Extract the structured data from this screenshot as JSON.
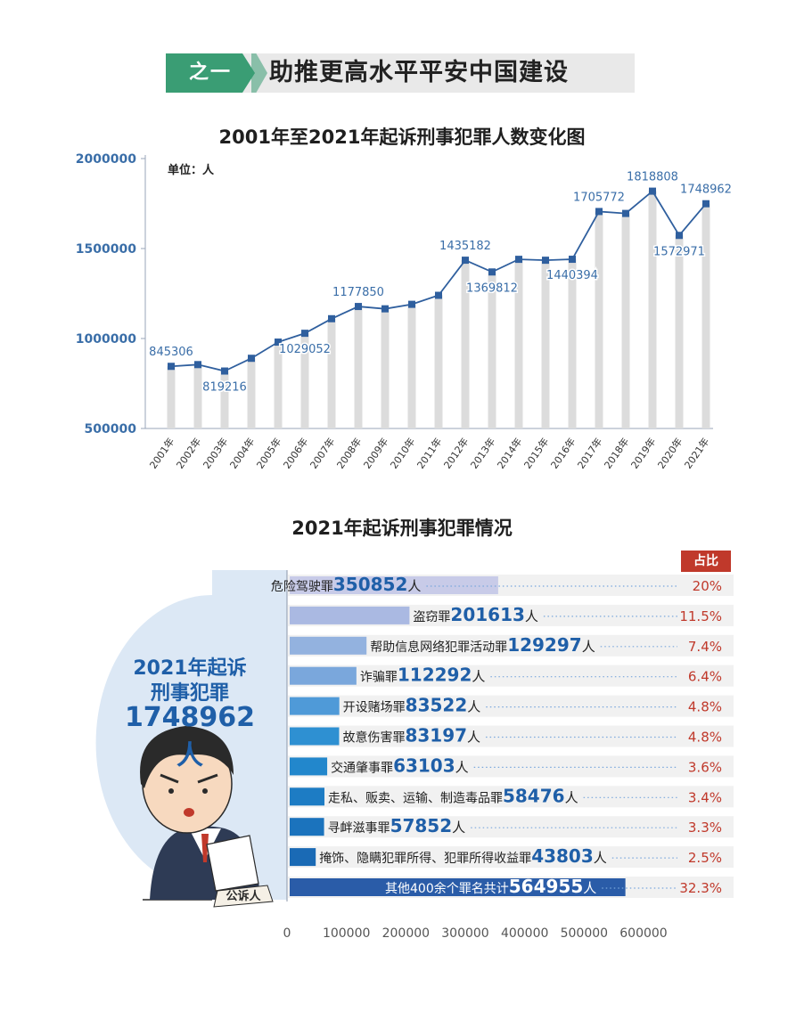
{
  "banner": {
    "tag": "之一",
    "title": "助推更高水平平安中国建设"
  },
  "line_chart_unit": "单位：人",
  "bar_panel": {
    "line1": "2021年起诉",
    "line2": "刑事犯罪",
    "total": "1748962人",
    "badge": "公诉人"
  },
  "colors": {
    "accent_green": "#3a9d74",
    "line_blue": "#2f5f9e",
    "label_blue": "#3a6ea8",
    "pct_red": "#c0392b"
  },
  "chart_data": [
    {
      "type": "line",
      "title": "2001年至2021年起诉刑事犯罪人数变化图",
      "xlabel": "",
      "ylabel": "",
      "ylim": [
        500000,
        2000000
      ],
      "yticks": [
        500000,
        1000000,
        1500000,
        2000000
      ],
      "grid": false,
      "x": [
        "2001年",
        "2002年",
        "2003年",
        "2004年",
        "2005年",
        "2006年",
        "2007年",
        "2008年",
        "2009年",
        "2010年",
        "2011年",
        "2012年",
        "2013年",
        "2014年",
        "2015年",
        "2016年",
        "2017年",
        "2018年",
        "2019年",
        "2020年",
        "2021年"
      ],
      "series": [
        {
          "values": [
            845306,
            855000,
            819216,
            890000,
            980000,
            1029052,
            1110000,
            1177850,
            1165000,
            1190000,
            1240000,
            1435182,
            1369812,
            1440000,
            1435000,
            1440394,
            1705772,
            1695000,
            1818808,
            1572971,
            1748962
          ]
        }
      ],
      "data_labels": [
        {
          "index": 0,
          "text": "845306"
        },
        {
          "index": 2,
          "text": "819216"
        },
        {
          "index": 5,
          "text": "1029052"
        },
        {
          "index": 7,
          "text": "1177850"
        },
        {
          "index": 11,
          "text": "1435182"
        },
        {
          "index": 12,
          "text": "1369812"
        },
        {
          "index": 15,
          "text": "1440394"
        },
        {
          "index": 16,
          "text": "1705772"
        },
        {
          "index": 18,
          "text": "1818808"
        },
        {
          "index": 19,
          "text": "1572971"
        },
        {
          "index": 20,
          "text": "1748962"
        }
      ]
    },
    {
      "type": "bar",
      "orientation": "horizontal",
      "title": "2021年起诉刑事犯罪情况",
      "xlim": [
        0,
        600000
      ],
      "xticks": [
        0,
        100000,
        200000,
        300000,
        400000,
        500000,
        600000
      ],
      "percent_header": "占比",
      "categories": [
        "危险驾驶罪",
        "盗窃罪",
        "帮助信息网络犯罪活动罪",
        "诈骗罪",
        "开设赌场罪",
        "故意伤害罪",
        "交通肇事罪",
        "走私、贩卖、运输、制造毒品罪",
        "寻衅滋事罪",
        "掩饰、隐瞒犯罪所得、犯罪所得收益罪",
        "其他400余个罪名共计"
      ],
      "values": [
        350852,
        201613,
        129297,
        112292,
        83522,
        83197,
        63103,
        58476,
        57852,
        43803,
        564955
      ],
      "value_labels": [
        "350852",
        "201613",
        "129297",
        "112292",
        "83522",
        "83197",
        "63103",
        "58476",
        "57852",
        "43803",
        "564955"
      ],
      "unit": "人",
      "percentages": [
        "20%",
        "11.5%",
        "7.4%",
        "6.4%",
        "4.8%",
        "4.8%",
        "3.6%",
        "3.4%",
        "3.3%",
        "2.5%",
        "32.3%"
      ],
      "colors": [
        "#c8cbe8",
        "#aab9e2",
        "#93b2df",
        "#7aa7dc",
        "#4f9ad8",
        "#2e90d2",
        "#2287cc",
        "#1d7cc4",
        "#1b73bd",
        "#1a6ab5",
        "#2a5ca8"
      ]
    }
  ]
}
